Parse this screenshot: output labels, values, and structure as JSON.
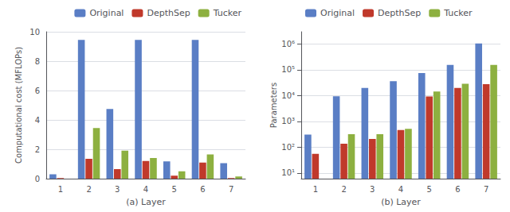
{
  "chart_data": [
    {
      "type": "bar",
      "categories": [
        "1",
        "2",
        "3",
        "4",
        "5",
        "6",
        "7"
      ],
      "series": [
        {
          "name": "Original",
          "color": "#5a7ec5",
          "values": [
            0.3,
            9.45,
            4.75,
            9.45,
            1.18,
            9.45,
            1.05
          ]
        },
        {
          "name": "DepthSep",
          "color": "#c0392b",
          "values": [
            0.04,
            1.35,
            0.65,
            1.2,
            0.2,
            1.1,
            0.04
          ]
        },
        {
          "name": "Tucker",
          "color": "#8db040",
          "values": [
            0.0,
            3.45,
            1.9,
            1.4,
            0.5,
            1.65,
            0.15
          ]
        }
      ],
      "xlabel": "(a) Layer",
      "ylabel": "Computational cost (MFLOPs)",
      "ylim": [
        0,
        10
      ],
      "yticks": [
        0,
        2,
        4,
        6,
        8,
        10
      ],
      "grid": true,
      "legend": "upper right"
    },
    {
      "type": "bar",
      "categories": [
        "1",
        "2",
        "3",
        "4",
        "5",
        "6",
        "7"
      ],
      "series": [
        {
          "name": "Original",
          "color": "#5a7ec5",
          "values": [
            310,
            9500,
            20000,
            36000,
            75000,
            155000,
            1050000
          ]
        },
        {
          "name": "DepthSep",
          "color": "#c0392b",
          "values": [
            55,
            135,
            210,
            460,
            9200,
            20000,
            28000
          ]
        },
        {
          "name": "Tucker",
          "color": "#8db040",
          "values": [
            null,
            320,
            320,
            510,
            14500,
            29000,
            155000
          ]
        }
      ],
      "xlabel": "(b) Layer",
      "ylabel": "Parameters",
      "log": "y",
      "ylim": [
        6,
        3000000
      ],
      "yticks": [
        {
          "value": 10,
          "label": "10¹"
        },
        {
          "value": 100,
          "label": "10²"
        },
        {
          "value": 1000,
          "label": "10³"
        },
        {
          "value": 10000,
          "label": "10⁴"
        },
        {
          "value": 100000,
          "label": "10⁵"
        },
        {
          "value": 1000000,
          "label": "10⁶"
        }
      ],
      "grid": true,
      "legend": "upper left"
    }
  ]
}
